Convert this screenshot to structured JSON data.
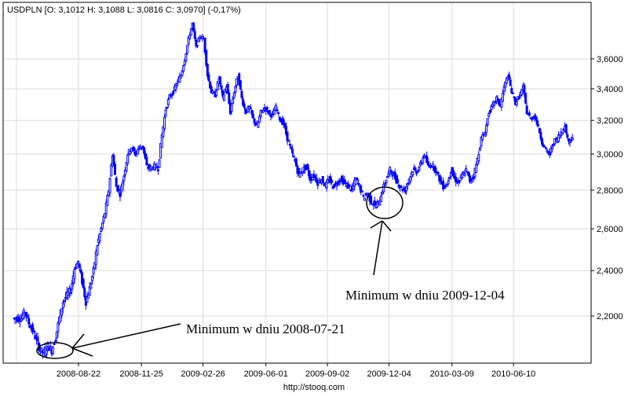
{
  "header": {
    "title": "USDPLN [O: 3,1012  H: 3,1088  L: 3,0816  C: 3,0970] (-0,17%)"
  },
  "footer": {
    "source": "http://stooq.com"
  },
  "annotations": [
    {
      "text": "Minimum w dniu 2008-07-21"
    },
    {
      "text": "Minimum w dniu 2009-12-04"
    }
  ],
  "colors": {
    "series": "#0000ff",
    "grid": "#dcdcdc",
    "axis": "#000000"
  },
  "chart_data": {
    "type": "line",
    "title": "USDPLN",
    "yscale": "log",
    "ylim": [
      2.05,
      3.9
    ],
    "grid": true,
    "ytick_values": [
      2.2,
      2.4,
      2.6,
      2.8,
      3.0,
      3.2,
      3.4,
      3.6
    ],
    "ytick_labels": [
      "2,2000",
      "2,4000",
      "2,6000",
      "2,8000",
      "3,0000",
      "3,2000",
      "3,4000",
      "3,6000"
    ],
    "xtick_labels": [
      "2008-08-22",
      "2008-11-25",
      "2009-02-26",
      "2009-06-01",
      "2009-09-02",
      "2009-12-04",
      "2010-03-09",
      "2010-06-10"
    ],
    "date_range": [
      "2008-05-17",
      "2010-09-08"
    ],
    "last": {
      "open": 3.1012,
      "high": 3.1088,
      "low": 3.0816,
      "close": 3.097,
      "change_pct": -0.17
    },
    "values": [
      2.19,
      2.19,
      2.19,
      2.22,
      2.17,
      2.14,
      2.1,
      2.06,
      2.05,
      2.08,
      2.06,
      2.11,
      2.19,
      2.26,
      2.29,
      2.31,
      2.41,
      2.44,
      2.35,
      2.26,
      2.32,
      2.4,
      2.52,
      2.6,
      2.68,
      2.8,
      3.0,
      2.82,
      2.78,
      2.88,
      3.0,
      3.04,
      3.0,
      3.04,
      3.04,
      2.93,
      2.92,
      2.93,
      2.92,
      3.11,
      3.27,
      3.35,
      3.38,
      3.44,
      3.49,
      3.6,
      3.74,
      3.85,
      3.68,
      3.76,
      3.74,
      3.49,
      3.38,
      3.36,
      3.47,
      3.34,
      3.42,
      3.25,
      3.38,
      3.49,
      3.34,
      3.25,
      3.28,
      3.21,
      3.16,
      3.25,
      3.28,
      3.25,
      3.23,
      3.28,
      3.21,
      3.18,
      3.09,
      3.02,
      2.96,
      2.88,
      2.91,
      2.93,
      2.86,
      2.88,
      2.84,
      2.86,
      2.82,
      2.86,
      2.82,
      2.84,
      2.86,
      2.84,
      2.82,
      2.8,
      2.86,
      2.82,
      2.76,
      2.78,
      2.74,
      2.72,
      2.73,
      2.8,
      2.86,
      2.91,
      2.88,
      2.84,
      2.81,
      2.8,
      2.86,
      2.91,
      2.9,
      2.94,
      3.0,
      2.93,
      2.94,
      2.91,
      2.86,
      2.82,
      2.83,
      2.91,
      2.86,
      2.84,
      2.88,
      2.91,
      2.85,
      2.88,
      2.97,
      3.09,
      3.13,
      3.25,
      3.29,
      3.34,
      3.29,
      3.41,
      3.49,
      3.38,
      3.31,
      3.35,
      3.41,
      3.25,
      3.21,
      3.23,
      3.16,
      3.07,
      3.02,
      3.0,
      3.07,
      3.09,
      3.13,
      3.16,
      3.07,
      3.1
    ]
  }
}
